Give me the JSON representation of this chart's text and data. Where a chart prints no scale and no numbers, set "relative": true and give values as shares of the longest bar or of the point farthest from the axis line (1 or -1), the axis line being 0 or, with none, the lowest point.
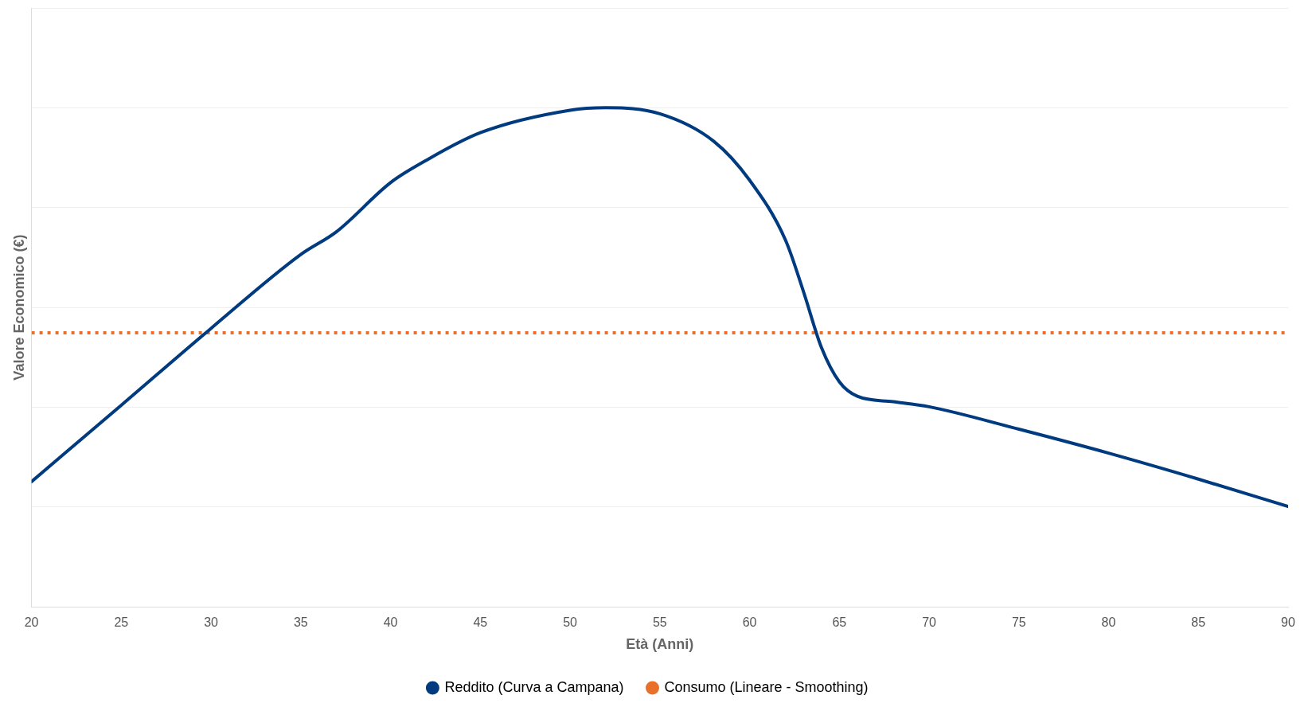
{
  "chart_data": {
    "type": "line",
    "relative": true,
    "xlabel": "Età (Anni)",
    "ylabel": "Valore Economico (€)",
    "xlim": [
      20,
      90
    ],
    "xticks": [
      20,
      25,
      30,
      35,
      40,
      45,
      50,
      55,
      60,
      65,
      70,
      75,
      80,
      85,
      90
    ],
    "grid": "y",
    "legend": "bottom",
    "marker": "none",
    "series": [
      {
        "name": "Reddito (Curva a Campana)",
        "color": "#003b80",
        "line_style": "solid",
        "x": [
          20,
          25,
          30,
          35,
          37,
          40,
          42,
          45,
          50,
          52,
          55,
          58,
          60,
          62,
          63,
          64,
          65,
          66,
          68,
          70,
          75,
          80,
          85,
          90
        ],
        "values": [
          0.251,
          0.404,
          0.558,
          0.706,
          0.752,
          0.85,
          0.895,
          0.95,
          0.995,
          1,
          0.988,
          0.933,
          0.855,
          0.735,
          0.632,
          0.52,
          0.451,
          0.422,
          0.411,
          0.401,
          0.356,
          0.308,
          0.256,
          0.201
        ]
      },
      {
        "name": "Consumo (Lineare - Smoothing)",
        "color": "#e8702a",
        "line_style": "dotted",
        "x": [
          20,
          90
        ],
        "values": [
          0.549,
          0.549
        ]
      }
    ]
  }
}
